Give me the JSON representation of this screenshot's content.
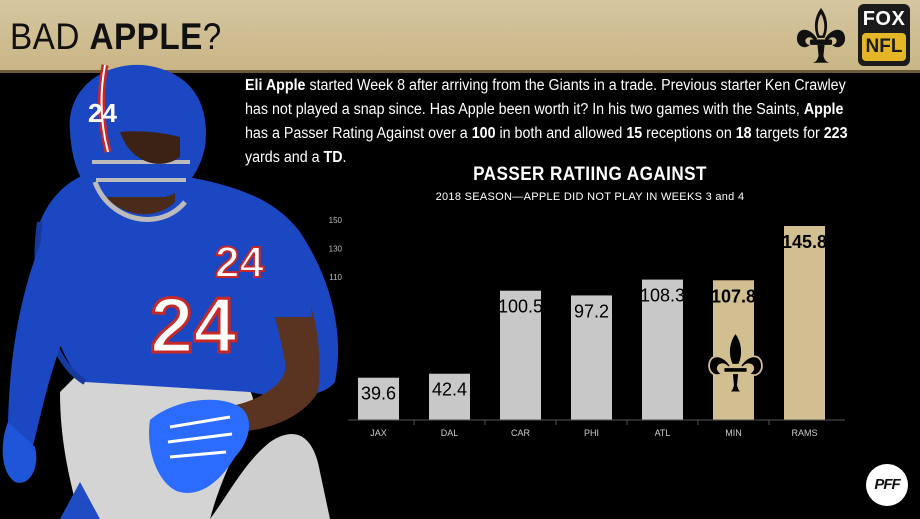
{
  "header": {
    "title_prefix": "BAD ",
    "title_bold": "APPLE",
    "title_suffix": "?",
    "network_logo": {
      "line1": "FOX",
      "line2": "NFL"
    },
    "team_logo_icon": "fleur-de-lis-icon"
  },
  "blurb": {
    "parts": [
      {
        "text": "Eli Apple",
        "bold": true
      },
      {
        "text": " started Week 8 after arriving from the Giants in a trade.  Previous starter Ken Crawley has not played a snap since.  Has Apple been worth it?  In his two games with the Saints, ",
        "bold": false
      },
      {
        "text": "Apple",
        "bold": true
      },
      {
        "text": " has a Passer Rating Against over a ",
        "bold": false
      },
      {
        "text": "100",
        "bold": true
      },
      {
        "text": " in both and allowed ",
        "bold": false
      },
      {
        "text": "15",
        "bold": true
      },
      {
        "text": " receptions on ",
        "bold": false
      },
      {
        "text": "18",
        "bold": true
      },
      {
        "text": " targets for ",
        "bold": false
      },
      {
        "text": "223",
        "bold": true
      },
      {
        "text": " yards and a ",
        "bold": false
      },
      {
        "text": "TD",
        "bold": true
      },
      {
        "text": ".",
        "bold": false
      }
    ]
  },
  "player_photo": {
    "jersey_number": "24"
  },
  "chart_data": {
    "type": "bar",
    "title": "PASSER RATIING AGAINST",
    "subtitle": "2018 SEASON—APPLE DID NOT PLAY IN WEEKS 3 and 4",
    "categories": [
      "JAX",
      "DAL",
      "CAR",
      "PHI",
      "ATL",
      "MIN",
      "RAMS"
    ],
    "values": [
      39.6,
      42.4,
      100.5,
      97.2,
      108.3,
      107.8,
      145.8
    ],
    "value_labels": [
      "39.6",
      "42.4",
      "100.5",
      "97.2",
      "108.3",
      "107.8",
      "145.8"
    ],
    "team": [
      "Giants",
      "Giants",
      "Giants",
      "Giants",
      "Giants",
      "Saints",
      "Saints"
    ],
    "yticks": [
      10,
      30,
      50,
      70,
      90,
      110,
      130,
      150
    ],
    "ytick_labels": [
      "",
      "",
      "",
      "",
      "",
      "110",
      "130",
      "150"
    ],
    "ylim": [
      10,
      150
    ],
    "grid": false,
    "colors": {
      "Giants": "#c8c8c8",
      "Saints": "#d2bf91",
      "label_dark": "#000000",
      "label_light": "#ffffff"
    },
    "watermark_icon": "fleur-de-lis-icon"
  },
  "footer": {
    "logo_text": "PFF"
  }
}
